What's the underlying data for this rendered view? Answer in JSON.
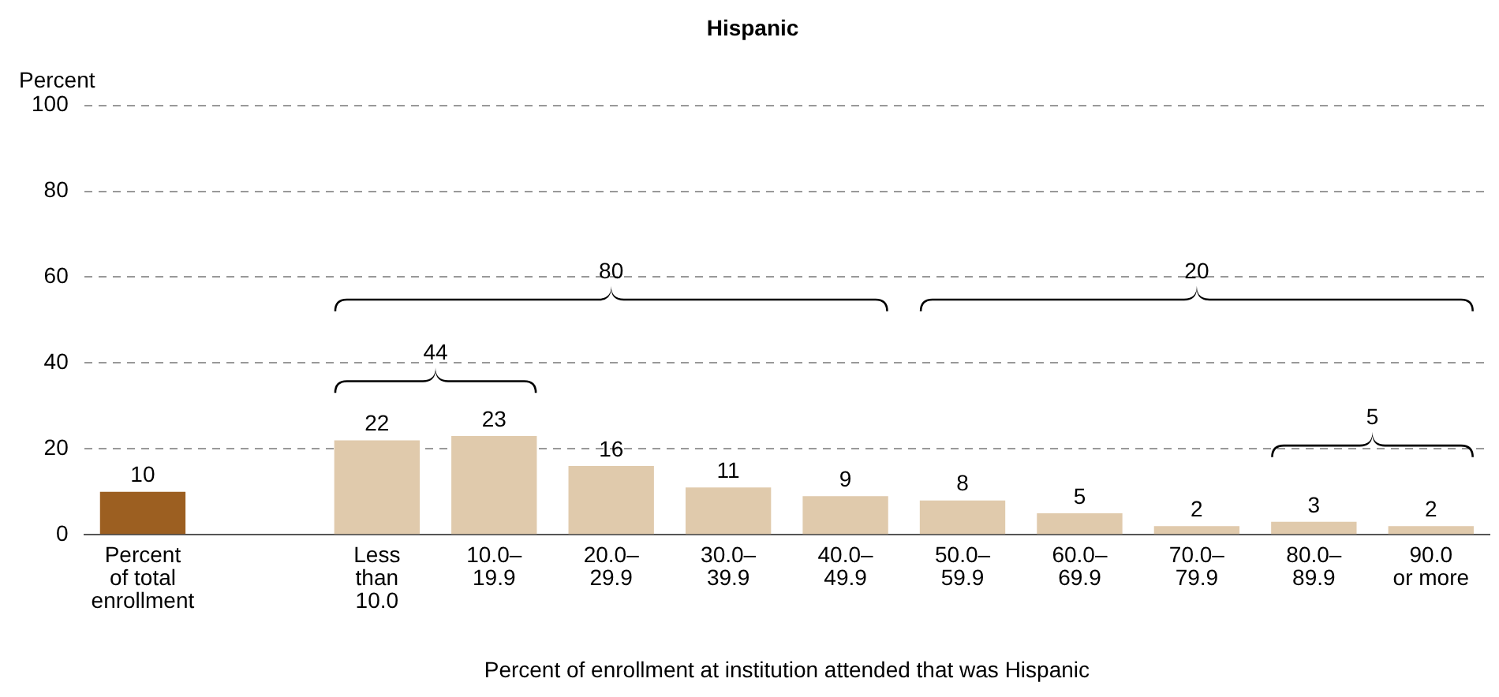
{
  "chart_data": {
    "type": "bar",
    "title": "Hispanic",
    "ylabel": "Percent",
    "xlabel": "Percent of enrollment at institution attended that was Hispanic",
    "categories": [
      "Percent of total enrollment",
      null,
      "Less than 10.0",
      "10.0–19.9",
      "20.0–29.9",
      "30.0–39.9",
      "40.0–49.9",
      "50.0–59.9",
      "60.0–69.9",
      "70.0–79.9",
      "80.0–89.9",
      "90.0 or more"
    ],
    "values": [
      10,
      null,
      22,
      23,
      16,
      11,
      9,
      8,
      5,
      2,
      3,
      2
    ],
    "colors": [
      "#9c5f21",
      null,
      "#e0caac",
      "#e0caac",
      "#e0caac",
      "#e0caac",
      "#e0caac",
      "#e0caac",
      "#e0caac",
      "#e0caac",
      "#e0caac",
      "#e0caac"
    ],
    "ylim": [
      0,
      100
    ],
    "yticks": [
      0,
      20,
      40,
      60,
      80,
      100
    ],
    "grid": "y",
    "data_labels": true,
    "annotations": [
      "80",
      "44",
      "20",
      "5"
    ]
  }
}
